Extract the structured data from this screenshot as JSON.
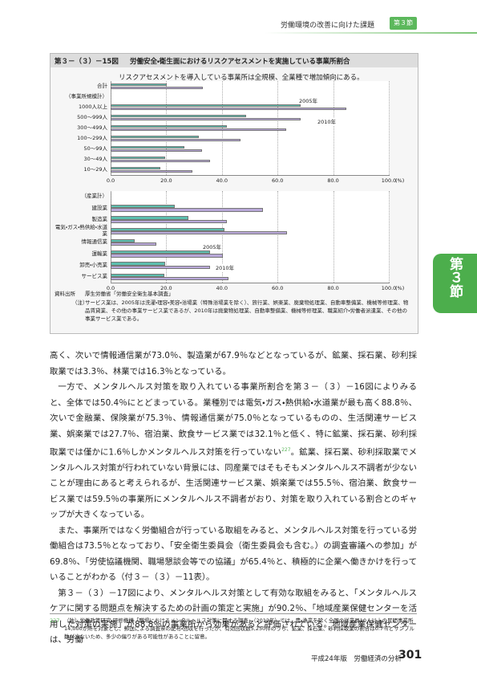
{
  "header": {
    "title": "労働環境の改善に向けた課題",
    "section": "第３節"
  },
  "side_tab": "第３節",
  "figure": {
    "number": "第３－（３）－15図",
    "title": "労働安全・衛生面におけるリスクアセスメントを実施している事業所割合",
    "subtitle": "リスクアセスメントを導入している事業所は全規模、全業種で増加傾向にある。",
    "source_label": "資料出所",
    "source": "厚生労働省「労働安全衛生基本調査」",
    "note_label": "（注）",
    "note": "サービス業は、2005年は洗濯・理容・美容・浴場業（特殊浴場業を除く）、旅行業、娯楽業、廃棄物処理業、自動車整備業、機械等修理業、物品賃貸業、その他の事業サービス業であるが、2010年は廃棄物処理業、自動車整備業、機械等修理業、職業紹介・労働者派遣業、その他の事業サービス業である。"
  },
  "chart_data": [
    {
      "type": "bar",
      "orientation": "horizontal",
      "categories": [
        "合計",
        "（事業所規模計）",
        "1000人以上",
        "500～999人",
        "300～499人",
        "100～299人",
        "50～99人",
        "30～49人",
        "10～29人"
      ],
      "series": [
        {
          "name": "2005年",
          "color": "#5cbfae",
          "values": [
            20.2,
            null,
            68.3,
            48.7,
            41.8,
            31.7,
            26.5,
            19.6,
            17.9
          ]
        },
        {
          "name": "2010年",
          "color": "#b9a8d9",
          "values": [
            33.1,
            null,
            84.7,
            68.3,
            63.1,
            46.7,
            32.9,
            35.7,
            29.4
          ]
        }
      ],
      "xlim": [
        0,
        100
      ],
      "xticks": [
        {
          "value": 0,
          "label": "0.0"
        },
        {
          "value": 20,
          "label": "20.0"
        },
        {
          "value": 40,
          "label": "40.0"
        },
        {
          "value": 60,
          "label": "60.0"
        },
        {
          "value": 80,
          "label": "80.0"
        },
        {
          "value": 100,
          "label": "100.0"
        }
      ],
      "xlabel": "(%)",
      "grid": true
    },
    {
      "type": "bar",
      "orientation": "horizontal",
      "categories": [
        "（産業計）",
        "建設業",
        "製造業",
        "電気・ガス・熱供給・水道業",
        "情報通信業",
        "運輸業",
        "卸売・小売業",
        "サービス業"
      ],
      "series": [
        {
          "name": "2005年",
          "color": "#5cbfae",
          "values": [
            null,
            23.1,
            28.0,
            40.9,
            8.6,
            35.7,
            19.6,
            19.3
          ]
        },
        {
          "name": "2010年",
          "color": "#b9a8d9",
          "values": [
            null,
            54.8,
            41.8,
            63.4,
            16.4,
            40.3,
            35.7,
            42.4
          ]
        }
      ],
      "xlim": [
        0,
        100
      ],
      "xticks": [
        {
          "value": 0,
          "label": "0.0"
        },
        {
          "value": 20,
          "label": "20.0"
        },
        {
          "value": 40,
          "label": "40.0"
        },
        {
          "value": 60,
          "label": "60.0"
        },
        {
          "value": 80,
          "label": "80.0"
        },
        {
          "value": 100,
          "label": "100.0"
        }
      ],
      "xlabel": "(%)",
      "grid": true
    }
  ],
  "body": {
    "p1": "高く、次いで情報通信業が73.0％、製造業が67.9％などとなっているが、鉱業、採石業、砂利採取業では3.3％、林業では16.3％となっている。",
    "p2_before": "一方で、メンタルヘルス対策を取り入れている事業所割合を第３－（３）－16図によりみると、全体では50.4％にとどまっている。業種別では電気・ガス・熱供給・水道業が最も高く88.8％、次いで金融業、保険業が75.3％、情報通信業が75.0％となっているものの、生活関連サービス業、娯楽業では27.7％、宿泊業、飲食サービス業では32.1％と低く、特に鉱業、採石業、砂利採取業では僅かに1.6％しかメンタルヘルス対策を行っていない",
    "p2_ref": "227",
    "p2_after": "。鉱業、採石業、砂利採取業でメンタルヘルス対策が行われていない背景には、同産業ではそもそもメンタルヘルス不調者が少ないことが理由にあると考えられるが、生活関連サービス業、娯楽業では55.5％、宿泊業、飲食サービス業では59.5％の事業所にメンタルヘルス不調者がおり、対策を取り入れている割合とのギャップが大きくなっている。",
    "p3": "また、事業所ではなく労働組合が行っている取組をみると、メンタルヘルス対策を行っている労働組合は73.5％となっており、「安全衛生委員会（衛生委員会も含む。）の調査審議への参加」が69.8％、「労使協議機関、職場懇談会等での協議」が65.4％と、積極的に企業へ働きかけを行っていることがわかる（付３－（３）－11表）。",
    "p4": "第３－（３）－17図により、メンタルヘルス対策として有効な取組をみると、「メンタルヘルスケアに関する問題点を解決するための計画の策定と実施」が90.2％、「地域産業保健センターを活用した対策の実施」が88.8％の事業所から効果があると評価されている。地域産業保健センターは、労働"
  },
  "footnote": {
    "number": "227",
    "text": "（独）労働政策研究・研修機構「職場におけるメンタルヘルス対策に関する調査」（2012年）では、農・漁業を除く全国の従業員10人以上の民間事業所14,000か所を対象とし、郵送による調査票の配布・回収を行ったが、有効回収数5,250件のうち、鉱業、採石業、砂利採取業の割合は0.7％とサンプル数が少ないため、多少の偏りがある可能性があることに留意。"
  },
  "footer": {
    "title": "平成24年版　労働経済の分析",
    "page": "301"
  }
}
